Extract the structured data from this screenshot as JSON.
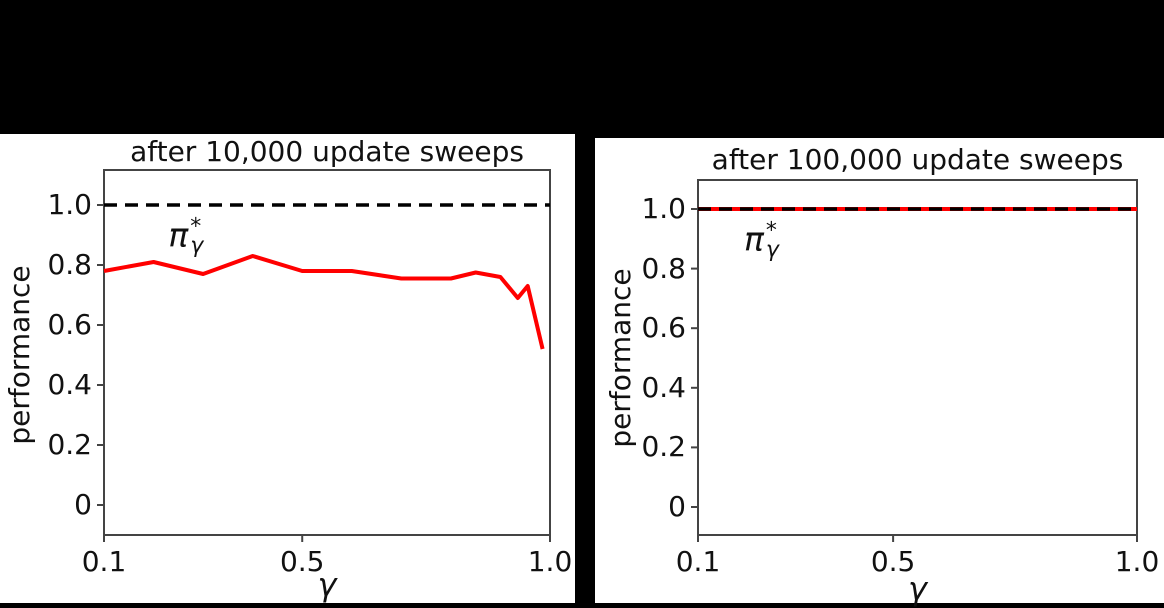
{
  "figure": {
    "background_color": "#000000",
    "panel_color": "#ffffff",
    "frame_color": "#444444",
    "reference_line_color": "#000000",
    "policy_line_color": "#ff0000"
  },
  "chart_data": [
    {
      "type": "line",
      "title": "after 10,000 update sweeps",
      "xlabel": "γ",
      "ylabel": "performance",
      "xlim": [
        0.1,
        1.0
      ],
      "ylim": [
        -0.11,
        1.12
      ],
      "grid": false,
      "legend_position": "none (inline annotation)",
      "xticks": {
        "values": [
          0.1,
          0.5,
          1.0
        ],
        "labels": [
          "0.1",
          "0.5",
          "1.0"
        ]
      },
      "yticks": {
        "values": [
          0,
          0.2,
          0.4,
          0.6,
          0.8,
          1.0
        ],
        "labels": [
          "0",
          "0.2",
          "0.4",
          "0.6",
          "0.8",
          "1.0"
        ]
      },
      "annotation": {
        "base": "π",
        "sup": "*",
        "sub": "γ",
        "x": 0.265,
        "y": 0.89
      },
      "series": [
        {
          "name": "optimal-performance-reference",
          "style": "dashed",
          "color": "#000000",
          "x": [
            0.1,
            1.0
          ],
          "y": [
            1.0,
            1.0
          ]
        },
        {
          "name": "pi-star-gamma-performance",
          "style": "solid",
          "color": "#ff0000",
          "x": [
            0.1,
            0.2,
            0.3,
            0.4,
            0.5,
            0.6,
            0.7,
            0.8,
            0.85,
            0.9,
            0.935,
            0.955,
            0.985
          ],
          "y": [
            0.78,
            0.81,
            0.77,
            0.83,
            0.78,
            0.78,
            0.755,
            0.755,
            0.775,
            0.76,
            0.69,
            0.73,
            0.52
          ]
        }
      ]
    },
    {
      "type": "line",
      "title": "after 100,000 update sweeps",
      "xlabel": "γ",
      "ylabel": "performance",
      "xlim": [
        0.1,
        1.0
      ],
      "ylim": [
        -0.11,
        1.12
      ],
      "grid": false,
      "legend_position": "none (inline annotation)",
      "xticks": {
        "values": [
          0.1,
          0.5,
          1.0
        ],
        "labels": [
          "0.1",
          "0.5",
          "1.0"
        ]
      },
      "yticks": {
        "values": [
          0,
          0.2,
          0.4,
          0.6,
          0.8,
          1.0
        ],
        "labels": [
          "0",
          "0.2",
          "0.4",
          "0.6",
          "0.8",
          "1.0"
        ]
      },
      "annotation": {
        "base": "π",
        "sup": "*",
        "sub": "γ",
        "x": 0.23,
        "y": 0.89
      },
      "series": [
        {
          "name": "pi-star-gamma-performance",
          "style": "solid",
          "color": "#ff0000",
          "x": [
            0.1,
            1.0
          ],
          "y": [
            1.0,
            1.0
          ]
        },
        {
          "name": "optimal-performance-reference",
          "style": "dashed",
          "color": "#000000",
          "x": [
            0.1,
            1.0
          ],
          "y": [
            1.0,
            1.0
          ]
        }
      ]
    }
  ]
}
